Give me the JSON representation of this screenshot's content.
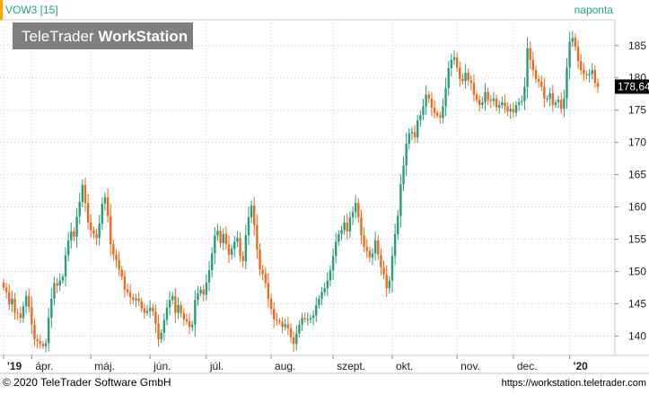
{
  "header": {
    "symbol": "VOW3 [15]",
    "period": "naponta",
    "watermark_light": "TeleTrader ",
    "watermark_bold": "WorkStation"
  },
  "footer": {
    "copyright": "© 2020 TeleTrader Software GmbH",
    "url": "https://workstation.teletrader.com"
  },
  "colors": {
    "up": "#2a9d7c",
    "down": "#ef6a1a",
    "header_text": "#1aa67a",
    "grid": "#c8c8c8",
    "price_box": "#000000",
    "accent_bar": "#ffa500"
  },
  "chart_data": {
    "type": "candlestick",
    "title": "VOW3 [15]",
    "period": "naponta",
    "ylim": [
      137,
      189
    ],
    "yticks": [
      140,
      145,
      150,
      155,
      160,
      165,
      170,
      175,
      180,
      185
    ],
    "grid": true,
    "last_price": "178,64",
    "last_value": 178.64,
    "x_labels": [
      {
        "label": "'19",
        "bold": true,
        "index": 0
      },
      {
        "label": "ápr.",
        "bold": false,
        "index": 10
      },
      {
        "label": "máj.",
        "bold": false,
        "index": 31
      },
      {
        "label": "jún.",
        "bold": false,
        "index": 52
      },
      {
        "label": "júl.",
        "bold": false,
        "index": 72
      },
      {
        "label": "aug.",
        "bold": false,
        "index": 95
      },
      {
        "label": "szept.",
        "bold": false,
        "index": 117
      },
      {
        "label": "okt.",
        "bold": false,
        "index": 138
      },
      {
        "label": "nov.",
        "bold": false,
        "index": 161
      },
      {
        "label": "dec.",
        "bold": false,
        "index": 181
      },
      {
        "label": "'20",
        "bold": true,
        "index": 201
      }
    ],
    "closes": [
      147.5,
      146.8,
      144.9,
      145.8,
      143.6,
      143.5,
      142.8,
      144.6,
      146.2,
      144.5,
      141.8,
      139.5,
      139.2,
      138.8,
      138.4,
      138.9,
      142.8,
      145.8,
      148.2,
      147.8,
      148.6,
      149.2,
      152.5,
      154.8,
      156.2,
      155.4,
      158.5,
      160.8,
      163.4,
      160.6,
      157.6,
      156.4,
      155.8,
      155.2,
      157.4,
      160.5,
      161.5,
      158.6,
      154.2,
      152.6,
      151.8,
      150.3,
      149.2,
      147.2,
      146.8,
      146.0,
      145.6,
      145.8,
      145.4,
      144.3,
      143.6,
      143.9,
      144.4,
      143.8,
      141.9,
      139.5,
      140.5,
      142.5,
      144.4,
      145.6,
      146.2,
      143.6,
      144.8,
      143.5,
      142.6,
      142.3,
      141.4,
      141.8,
      145.6,
      146.6,
      147.2,
      146.4,
      148.3,
      150.2,
      152.8,
      155.6,
      156.3,
      154.4,
      155.8,
      154.2,
      152.6,
      153.5,
      154.6,
      155.2,
      152.4,
      151.6,
      155.6,
      158.4,
      160.2,
      157.2,
      153.4,
      150.3,
      149.6,
      148.2,
      145.8,
      144.2,
      142.6,
      142.4,
      142.2,
      141.4,
      141.8,
      141.2,
      139.8,
      138.8,
      140.4,
      141.8,
      142.8,
      142.6,
      142.6,
      142.8,
      143.2,
      144.8,
      145.8,
      146.8,
      147.4,
      148.6,
      150.2,
      152.4,
      154.6,
      155.8,
      156.4,
      157.6,
      156.2,
      158.4,
      159.2,
      160.6,
      158.4,
      155.6,
      153.8,
      153.2,
      152.2,
      152.8,
      154.8,
      152.6,
      150.6,
      149.5,
      147.4,
      148.6,
      152.4,
      155.8,
      158.6,
      163.5,
      166.4,
      169.8,
      171.4,
      171.6,
      170.8,
      173.4,
      174.2,
      175.6,
      177.4,
      176.8,
      175.4,
      174.6,
      174.2,
      173.8,
      175.6,
      178.4,
      181.5,
      182.8,
      183.2,
      181.6,
      179.8,
      179.5,
      180.8,
      179.6,
      179.2,
      177.4,
      176.6,
      175.8,
      176.2,
      177.8,
      176.6,
      176.4,
      176.8,
      175.4,
      175.8,
      176.2,
      175.6,
      174.8,
      175.2,
      174.6,
      175.8,
      176.2,
      176.4,
      178.6,
      184.6,
      182.8,
      181.2,
      179.8,
      179.4,
      178.6,
      176.8,
      176.8,
      177.6,
      175.8,
      176.2,
      176.6,
      175.2,
      176.8,
      181.6,
      185.6,
      186.2,
      184.8,
      182.6,
      181.2,
      180.6,
      180.4,
      180.6,
      181.2,
      179.2,
      178.6
    ]
  }
}
